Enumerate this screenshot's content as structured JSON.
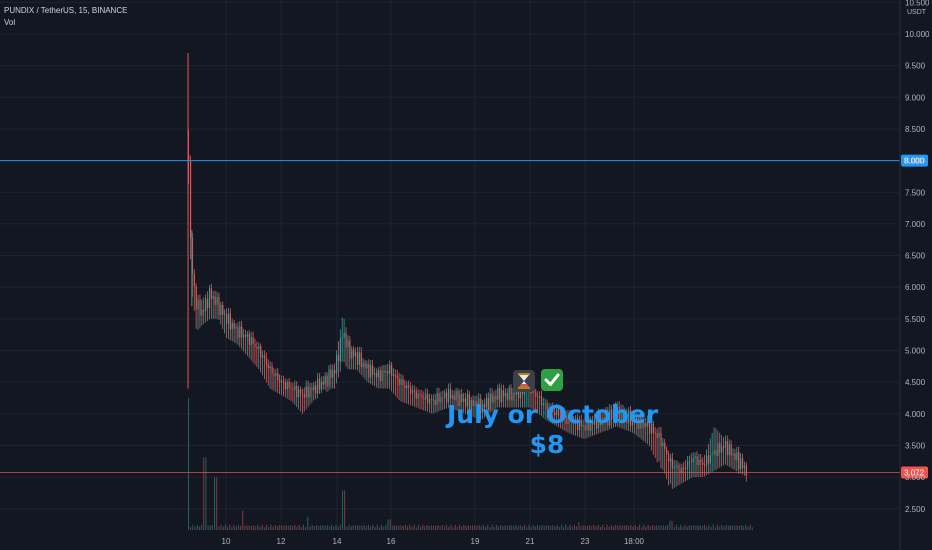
{
  "header": {
    "symbol_line": "PUNDIX / TetherUS, 15, BINANCE",
    "volume_label": "Vol"
  },
  "annotation": {
    "line1": "July or October",
    "line2": "$8",
    "icons": [
      "hourglass-icon",
      "check-mark-icon"
    ]
  },
  "colors": {
    "background": "#131722",
    "up": "#26a69a",
    "down": "#ef5350",
    "target_line": "#2196f3",
    "current_price": "#ef5350",
    "grid": "#1f2330",
    "axis_text": "#b2b5be",
    "annotation": "#2196f3"
  },
  "chart_data": {
    "type": "line",
    "title": "PUNDIX / TetherUS, 15, BINANCE",
    "xlabel": "",
    "ylabel": "",
    "y_unit": "USDT",
    "ylim": [
      2.3,
      10.6
    ],
    "y_ticks": [
      "2.500",
      "3.000",
      "3.500",
      "4.000",
      "4.500",
      "5.000",
      "5.500",
      "6.000",
      "6.500",
      "7.000",
      "7.500",
      "8.000",
      "8.500",
      "9.000",
      "9.500",
      "10.000",
      "10.500"
    ],
    "x_ticks": [
      "10",
      "12",
      "14",
      "16",
      "19",
      "21",
      "23",
      "18:00"
    ],
    "target_price": "8.000",
    "current_price": "3.072",
    "grid": true,
    "series": [
      {
        "x": [
          9.3,
          9.33,
          9.38,
          9.45,
          9.55,
          9.7,
          9.85,
          10.0,
          10.2,
          10.4,
          10.6,
          10.8,
          11.0,
          11.2,
          11.4,
          11.6,
          11.8,
          12.0,
          12.15,
          12.25,
          12.4,
          12.6,
          12.8,
          13.0,
          13.2,
          13.5,
          13.8,
          14.1,
          14.4,
          14.7,
          15.0,
          15.3,
          15.6,
          15.9,
          16.1,
          16.3,
          16.6,
          16.9,
          17.2,
          17.5,
          17.8,
          18.0,
          18.2,
          18.4,
          18.6,
          18.8,
          19.0,
          19.2,
          19.4,
          19.6
        ],
        "close": [
          8.1,
          6.8,
          6.1,
          5.7,
          5.6,
          5.9,
          5.7,
          5.5,
          5.3,
          5.2,
          5.0,
          4.7,
          4.5,
          4.4,
          4.3,
          4.4,
          4.5,
          4.7,
          5.3,
          5.0,
          4.9,
          4.7,
          4.6,
          4.7,
          4.5,
          4.3,
          4.2,
          4.3,
          4.2,
          4.1,
          4.3,
          4.3,
          4.4,
          4.1,
          4.0,
          3.9,
          3.8,
          3.9,
          4.0,
          3.9,
          3.8,
          3.6,
          3.2,
          3.1,
          3.3,
          3.2,
          3.4,
          3.5,
          3.3,
          3.1
        ],
        "high": [
          9.7,
          6.9,
          6.5,
          5.9,
          5.8,
          6.0,
          5.8,
          5.6,
          5.4,
          5.3,
          5.1,
          4.8,
          4.6,
          4.5,
          4.4,
          4.5,
          4.6,
          4.8,
          5.6,
          5.1,
          5.0,
          4.8,
          4.7,
          4.8,
          4.6,
          4.4,
          4.3,
          4.4,
          4.3,
          4.2,
          4.4,
          4.4,
          4.5,
          4.2,
          4.1,
          4.0,
          3.9,
          4.0,
          4.2,
          4.0,
          3.9,
          3.7,
          3.3,
          3.2,
          3.4,
          3.3,
          3.8,
          3.6,
          3.4,
          3.2
        ],
        "low": [
          4.4,
          6.0,
          5.6,
          5.3,
          5.4,
          5.5,
          5.5,
          5.2,
          5.1,
          4.9,
          4.7,
          4.4,
          4.3,
          4.2,
          4.0,
          4.2,
          4.4,
          4.4,
          4.8,
          4.7,
          4.7,
          4.5,
          4.4,
          4.4,
          4.2,
          4.1,
          4.0,
          4.1,
          4.0,
          3.9,
          4.1,
          4.1,
          4.1,
          3.9,
          3.8,
          3.7,
          3.6,
          3.7,
          3.8,
          3.7,
          3.5,
          3.1,
          2.8,
          2.9,
          3.0,
          3.0,
          3.1,
          3.2,
          3.1,
          3.0
        ]
      }
    ],
    "volume_peaks": [
      {
        "x": 9.3,
        "rel": 1.0
      },
      {
        "x": 9.6,
        "rel": 0.55
      },
      {
        "x": 9.8,
        "rel": 0.4
      },
      {
        "x": 12.15,
        "rel": 0.3
      },
      {
        "x": 10.3,
        "rel": 0.15
      },
      {
        "x": 11.5,
        "rel": 0.1
      },
      {
        "x": 13.0,
        "rel": 0.08
      },
      {
        "x": 16.5,
        "rel": 0.06
      },
      {
        "x": 18.2,
        "rel": 0.07
      }
    ]
  }
}
